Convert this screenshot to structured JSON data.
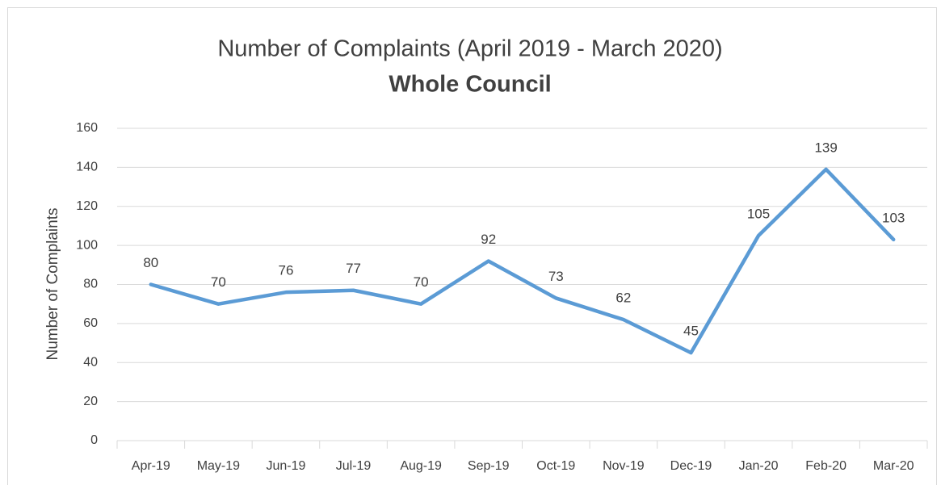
{
  "chart_data": {
    "type": "line",
    "title": "Number of Complaints (April 2019 - March 2020)",
    "subtitle": "Whole Council",
    "y_label": "Number of Complaints",
    "categories": [
      "Apr-19",
      "May-19",
      "Jun-19",
      "Jul-19",
      "Aug-19",
      "Sep-19",
      "Oct-19",
      "Nov-19",
      "Dec-19",
      "Jan-20",
      "Feb-20",
      "Mar-20"
    ],
    "values": [
      80,
      70,
      76,
      77,
      70,
      92,
      73,
      62,
      45,
      105,
      139,
      103
    ],
    "color": "#5b9bd5",
    "ylim": [
      0,
      160
    ],
    "yticks": [
      0,
      20,
      40,
      60,
      80,
      100,
      120,
      140,
      160
    ],
    "grid": true
  }
}
